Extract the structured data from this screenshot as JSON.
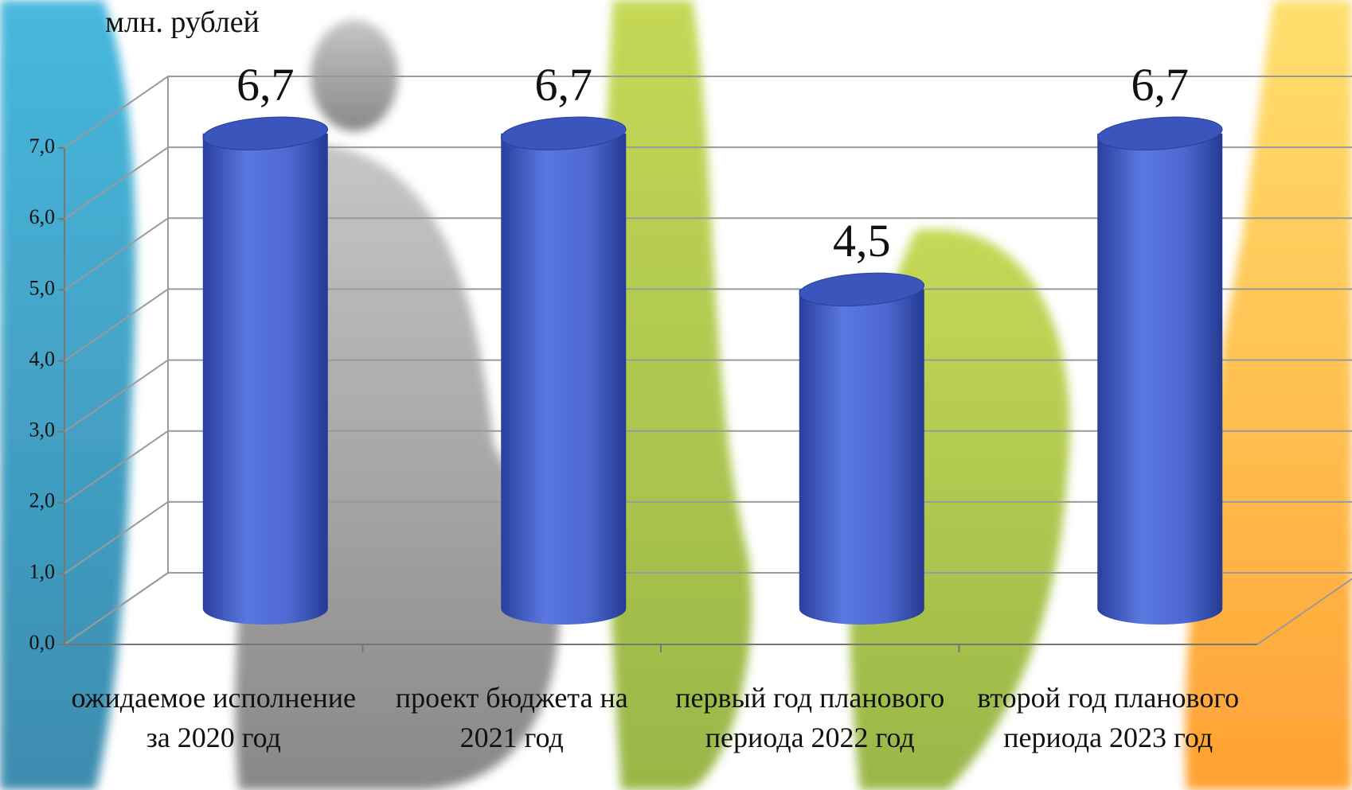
{
  "chart_data": {
    "type": "bar",
    "ylabel": "млн. рублей",
    "categories": [
      "ожидаемое исполнение за 2020 год",
      "проект бюджета на 2021 год",
      "первый год планового периода 2022 год",
      "второй год планового периода 2023 год"
    ],
    "values": [
      6.7,
      6.7,
      4.5,
      6.7
    ],
    "value_labels": [
      "6,7",
      "6,7",
      "4,5",
      "6,7"
    ],
    "color": "#4f6bd6",
    "ylim": [
      0,
      7
    ],
    "yticks": [
      {
        "value": 0,
        "label": "0,0"
      },
      {
        "value": 1,
        "label": "1,0"
      },
      {
        "value": 2,
        "label": "2,0"
      },
      {
        "value": 3,
        "label": "3,0"
      },
      {
        "value": 4,
        "label": "4,0"
      },
      {
        "value": 5,
        "label": "5,0"
      },
      {
        "value": 6,
        "label": "6,0"
      },
      {
        "value": 7,
        "label": "7,0"
      }
    ],
    "grid": true
  }
}
